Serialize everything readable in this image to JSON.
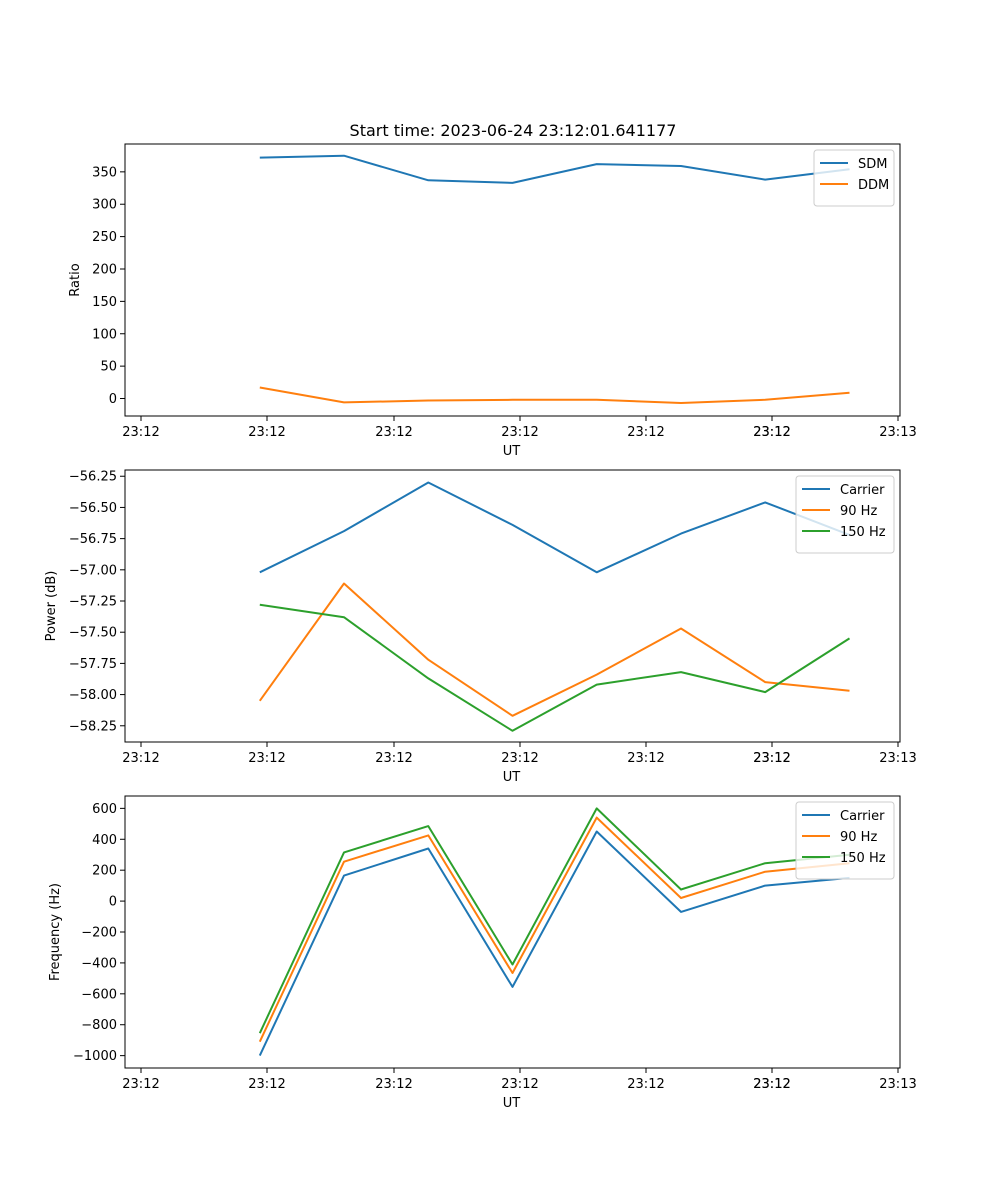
{
  "title": "Start time: 2023-06-24 23:12:01.641177",
  "colors": {
    "blue": "#1f77b4",
    "orange": "#ff7f0e",
    "green": "#2ca02c"
  },
  "chart_data": [
    {
      "type": "line",
      "xlabel": "UT",
      "ylabel": "Ratio",
      "x_tick_labels": [
        "23:12",
        "23:12",
        "23:12",
        "23:12",
        "23:12",
        "23:12",
        "23:12",
        "23:13"
      ],
      "xlim": [
        -0.6,
        8.6
      ],
      "x": [
        1,
        2,
        3,
        4,
        5,
        6,
        7,
        8
      ],
      "ylim": [
        -27,
        393
      ],
      "y_ticks": [
        0,
        50,
        100,
        150,
        200,
        250,
        300,
        350
      ],
      "legend_position": "upper-right",
      "series": [
        {
          "name": "SDM",
          "color": "#1f77b4",
          "values": [
            372,
            375,
            337,
            333,
            362,
            359,
            338,
            354
          ]
        },
        {
          "name": "DDM",
          "color": "#ff7f0e",
          "values": [
            17,
            -6,
            -3,
            -2,
            -2,
            -7,
            -2,
            9
          ]
        }
      ]
    },
    {
      "type": "line",
      "xlabel": "UT",
      "ylabel": "Power (dB)",
      "x_tick_labels": [
        "23:12",
        "23:12",
        "23:12",
        "23:12",
        "23:12",
        "23:12",
        "23:12",
        "23:13"
      ],
      "xlim": [
        -0.6,
        8.6
      ],
      "x": [
        1,
        2,
        3,
        4,
        5,
        6,
        7,
        8
      ],
      "ylim": [
        -58.38,
        -56.2
      ],
      "y_ticks": [
        -56.25,
        -56.5,
        -56.75,
        -57.0,
        -57.25,
        -57.5,
        -57.75,
        -58.0,
        -58.25
      ],
      "y_tick_labels": [
        "−56.25",
        "−56.50",
        "−56.75",
        "−57.00",
        "−57.25",
        "−57.50",
        "−57.75",
        "−58.00",
        "−58.25"
      ],
      "legend_position": "upper-right",
      "series": [
        {
          "name": "Carrier",
          "color": "#1f77b4",
          "values": [
            -57.02,
            -56.69,
            -56.3,
            -56.64,
            -57.02,
            -56.71,
            -56.46,
            -56.72
          ]
        },
        {
          "name": "90 Hz",
          "color": "#ff7f0e",
          "values": [
            -58.05,
            -57.11,
            -57.72,
            -58.17,
            -57.84,
            -57.47,
            -57.9,
            -57.97
          ]
        },
        {
          "name": "150 Hz",
          "color": "#2ca02c",
          "values": [
            -57.28,
            -57.38,
            -57.87,
            -58.29,
            -57.92,
            -57.82,
            -57.98,
            -57.55
          ]
        }
      ]
    },
    {
      "type": "line",
      "xlabel": "UT",
      "ylabel": "Frequency (Hz)",
      "x_tick_labels": [
        "23:12",
        "23:12",
        "23:12",
        "23:12",
        "23:12",
        "23:12",
        "23:12",
        "23:13"
      ],
      "xlim": [
        -0.6,
        8.6
      ],
      "x": [
        1,
        2,
        3,
        4,
        5,
        6,
        7,
        8
      ],
      "ylim": [
        -1080,
        680
      ],
      "y_ticks": [
        600,
        400,
        200,
        0,
        -200,
        -400,
        -600,
        -800,
        -1000
      ],
      "y_tick_labels": [
        "600",
        "400",
        "200",
        "0",
        "−200",
        "−400",
        "−600",
        "−800",
        "−1000"
      ],
      "legend_position": "upper-right",
      "series": [
        {
          "name": "Carrier",
          "color": "#1f77b4",
          "values": [
            -1000,
            165,
            340,
            -555,
            450,
            -70,
            100,
            150
          ]
        },
        {
          "name": "90 Hz",
          "color": "#ff7f0e",
          "values": [
            -910,
            255,
            425,
            -465,
            540,
            20,
            190,
            245
          ]
        },
        {
          "name": "150 Hz",
          "color": "#2ca02c",
          "values": [
            -855,
            315,
            485,
            -410,
            600,
            75,
            245,
            300
          ]
        }
      ]
    }
  ]
}
